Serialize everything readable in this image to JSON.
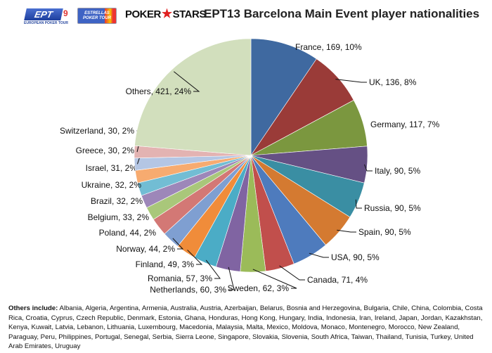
{
  "logos": {
    "ept": "EPT",
    "ept_number": "9",
    "ept_subtitle": "EUROPEAN POKER TOUR",
    "estrellas": "ESTRELLAS POKER TOUR",
    "pokerstars_left": "POKER",
    "pokerstars_right": "STARS"
  },
  "chart_data": {
    "type": "pie",
    "title": "EPT13 Barcelona Main Event player nationalities",
    "start": "12 o'clock, clockwise",
    "slices": [
      {
        "label": "France",
        "value": 169,
        "percent": "10%",
        "color": "#3f69a0"
      },
      {
        "label": "UK",
        "value": 136,
        "percent": "8%",
        "color": "#9a3b38"
      },
      {
        "label": "Germany",
        "value": 117,
        "percent": "7%",
        "color": "#7b973f"
      },
      {
        "label": "Italy",
        "value": 90,
        "percent": "5%",
        "color": "#655084"
      },
      {
        "label": "Russia",
        "value": 90,
        "percent": "5%",
        "color": "#3a8ea3"
      },
      {
        "label": "Spain",
        "value": 90,
        "percent": "5%",
        "color": "#d47a31"
      },
      {
        "label": "USA",
        "value": 90,
        "percent": "5%",
        "color": "#4e7bbd"
      },
      {
        "label": "Canada",
        "value": 71,
        "percent": "4%",
        "color": "#c14f4c"
      },
      {
        "label": "Sweden",
        "value": 62,
        "percent": "3%",
        "color": "#9bbb59"
      },
      {
        "label": "Netherlands",
        "value": 60,
        "percent": "3%",
        "color": "#8064a2"
      },
      {
        "label": "Romania",
        "value": 57,
        "percent": "3%",
        "color": "#4bacc6"
      },
      {
        "label": "Finland",
        "value": 49,
        "percent": "3%",
        "color": "#f08c3a"
      },
      {
        "label": "Norway",
        "value": 44,
        "percent": "2%",
        "color": "#7f9fd1"
      },
      {
        "label": "Poland",
        "value": 44,
        "percent": "2%",
        "color": "#d37875"
      },
      {
        "label": "Belgium",
        "value": 33,
        "percent": "2%",
        "color": "#a9c77a"
      },
      {
        "label": "Brazil",
        "value": 32,
        "percent": "2%",
        "color": "#9d87b9"
      },
      {
        "label": "Ukraine",
        "value": 32,
        "percent": "2%",
        "color": "#72bdd4"
      },
      {
        "label": "Israel",
        "value": 31,
        "percent": "2%",
        "color": "#f7ab70"
      },
      {
        "label": "Greece",
        "value": 30,
        "percent": "2%",
        "color": "#b4c6e4"
      },
      {
        "label": "Switzerland",
        "value": 30,
        "percent": "2%",
        "color": "#e3b3b2"
      },
      {
        "label": "Others",
        "value": 421,
        "percent": "24%",
        "color": "#d2dfbd"
      }
    ]
  },
  "note": {
    "heading": "Others include:",
    "text": "Albania, Algeria, Argentina, Armenia, Australia, Austria, Azerbaijan, Belarus, Bosnia and Herzegovina, Bulgaria, Chile, China, Colombia, Costa Rica, Croatia, Cyprus, Czech Republic, Denmark, Estonia, Ghana, Honduras, Hong Kong, Hungary, India, Indonesia, Iran, Ireland, Japan, Jordan, Kazakhstan, Kenya, Kuwait, Latvia, Lebanon, Lithuania, Luxembourg, Macedonia, Malaysia, Malta, Mexico, Moldova, Monaco, Montenegro, Morocco, New Zealand, Paraguay, Peru, Philippines, Portugal, Senegal, Serbia, Sierra Leone, Singapore, Slovakia, Slovenia, South Africa, Taiwan, Thailand, Tunisia, Turkey, United Arab Emirates, Uruguay"
  }
}
